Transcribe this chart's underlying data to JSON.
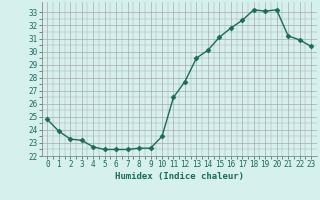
{
  "x": [
    0,
    1,
    2,
    3,
    4,
    5,
    6,
    7,
    8,
    9,
    10,
    11,
    12,
    13,
    14,
    15,
    16,
    17,
    18,
    19,
    20,
    21,
    22,
    23
  ],
  "y": [
    24.8,
    23.9,
    23.3,
    23.2,
    22.7,
    22.5,
    22.5,
    22.5,
    22.6,
    22.6,
    23.5,
    26.5,
    27.7,
    29.5,
    30.1,
    31.1,
    31.8,
    32.4,
    33.2,
    33.1,
    33.2,
    31.2,
    30.9,
    30.4
  ],
  "line_color": "#1a6b5a",
  "marker": "D",
  "marker_size": 2.5,
  "bg_color": "#d6f0ee",
  "grid_color": "#aaaaaa",
  "xlabel": "Humidex (Indice chaleur)",
  "xlim": [
    -0.5,
    23.5
  ],
  "ylim": [
    22,
    33.8
  ],
  "yticks": [
    22,
    23,
    24,
    25,
    26,
    27,
    28,
    29,
    30,
    31,
    32,
    33
  ],
  "xticks": [
    0,
    1,
    2,
    3,
    4,
    5,
    6,
    7,
    8,
    9,
    10,
    11,
    12,
    13,
    14,
    15,
    16,
    17,
    18,
    19,
    20,
    21,
    22,
    23
  ],
  "label_fontsize": 6.5,
  "tick_fontsize": 5.5
}
